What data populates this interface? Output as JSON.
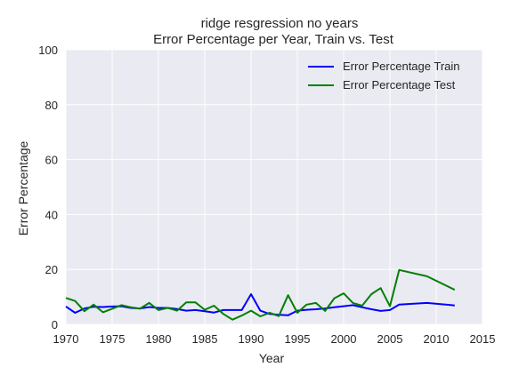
{
  "chart_data": {
    "type": "line",
    "title": "ridge resgression no years",
    "subtitle": "Error Percentage per Year, Train vs. Test",
    "xlabel": "Year",
    "ylabel": "Error Percentage",
    "xlim": [
      1970,
      2015
    ],
    "ylim": [
      0,
      100
    ],
    "xticks": [
      1970,
      1975,
      1980,
      1985,
      1990,
      1995,
      2000,
      2005,
      2010,
      2015
    ],
    "yticks": [
      0,
      20,
      40,
      60,
      80,
      100
    ],
    "grid": true,
    "legend_position": "top-right",
    "x": [
      1970,
      1971,
      1972,
      1973,
      1974,
      1975,
      1976,
      1977,
      1978,
      1979,
      1980,
      1981,
      1982,
      1983,
      1984,
      1985,
      1986,
      1987,
      1988,
      1989,
      1990,
      1991,
      1992,
      1993,
      1994,
      1995,
      1996,
      1997,
      1998,
      1999,
      2000,
      2001,
      2002,
      2003,
      2004,
      2005,
      2006,
      2009,
      2012
    ],
    "series": [
      {
        "name": "Error Percentage Train",
        "color": "#0000ff",
        "values": [
          6.5,
          4.2,
          5.8,
          6.4,
          6.3,
          6.5,
          6.6,
          6.0,
          5.8,
          6.3,
          6.0,
          6.0,
          5.6,
          5.0,
          5.2,
          4.8,
          4.3,
          5.2,
          5.2,
          5.2,
          11.0,
          5.0,
          3.8,
          3.5,
          3.3,
          5.0,
          5.3,
          5.5,
          5.8,
          6.2,
          6.6,
          7.0,
          6.2,
          5.5,
          4.9,
          5.2,
          7.2,
          7.8,
          6.9
        ]
      },
      {
        "name": "Error Percentage Test",
        "color": "#008000",
        "values": [
          9.6,
          8.5,
          4.8,
          7.2,
          4.4,
          5.7,
          7.0,
          6.2,
          5.7,
          7.8,
          5.2,
          6.0,
          5.0,
          8.0,
          8.0,
          5.3,
          6.8,
          3.8,
          1.7,
          3.2,
          5.0,
          2.9,
          4.2,
          3.0,
          10.6,
          4.2,
          7.2,
          7.8,
          4.9,
          9.5,
          11.3,
          7.8,
          6.8,
          11.0,
          13.2,
          6.6,
          19.8,
          17.5,
          12.6
        ]
      }
    ]
  }
}
